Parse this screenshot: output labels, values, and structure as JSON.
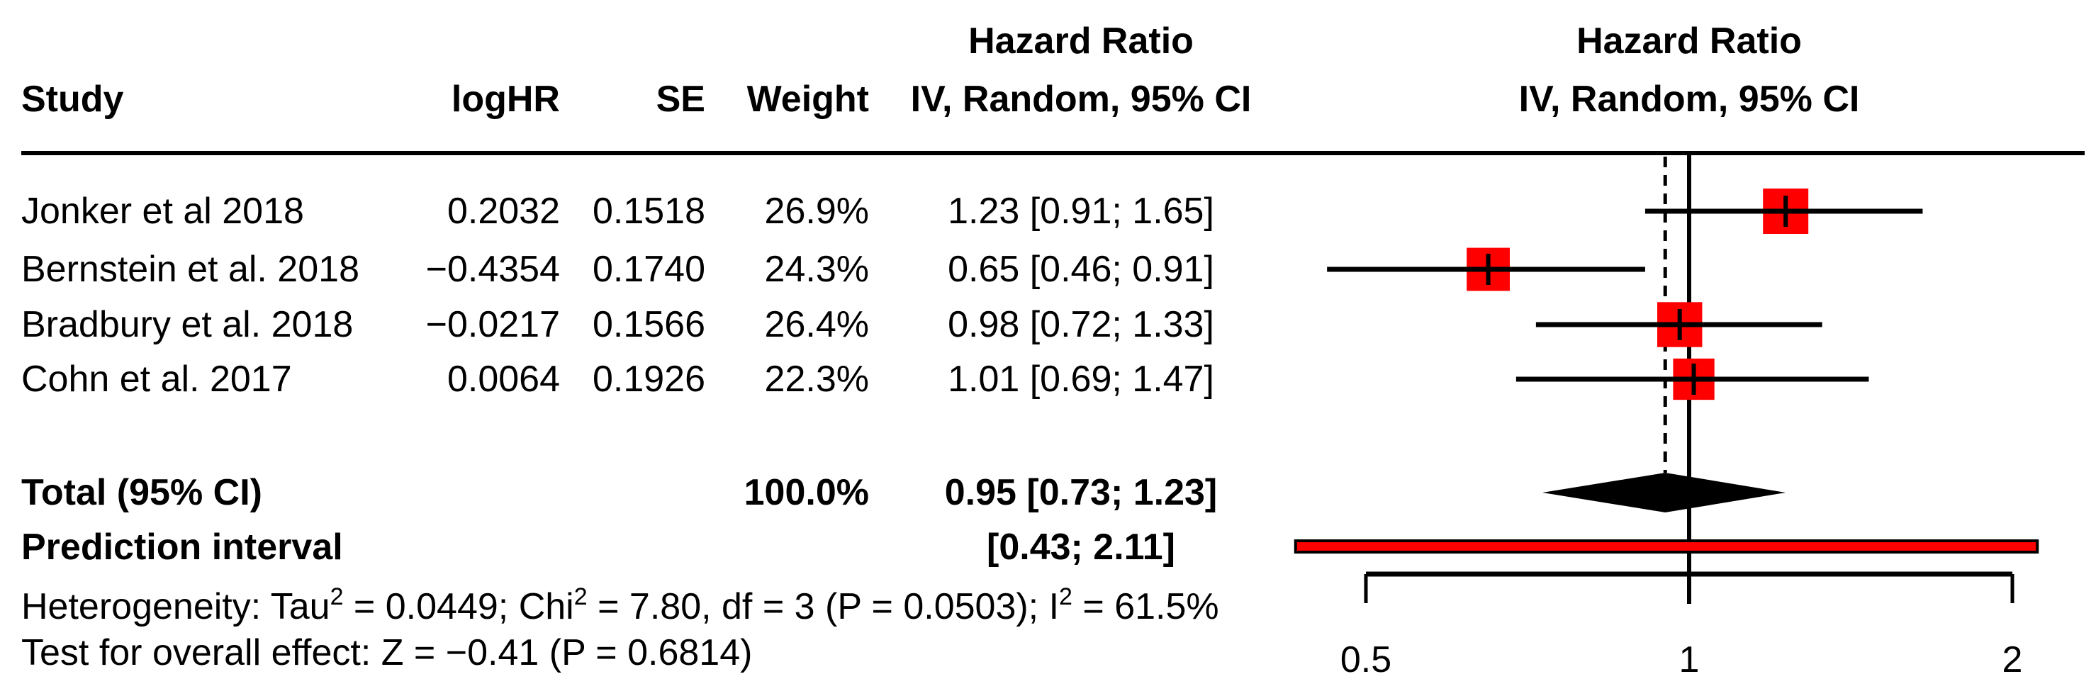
{
  "table": {
    "headers": {
      "hazard_ratio_left": "Hazard Ratio",
      "hazard_ratio_right": "Hazard Ratio",
      "study": "Study",
      "loghr": "logHR",
      "se": "SE",
      "weight": "Weight",
      "iv_random_left": "IV, Random, 95% CI",
      "iv_random_right": "IV, Random, 95% CI"
    },
    "rows": [
      {
        "study": "Jonker et al 2018",
        "loghr": "0.2032",
        "se": "0.1518",
        "weight": "26.9%",
        "ci": "1.23 [0.91; 1.65]"
      },
      {
        "study": "Bernstein et al. 2018",
        "loghr": "−0.4354",
        "se": "0.1740",
        "weight": "24.3%",
        "ci": "0.65 [0.46; 0.91]"
      },
      {
        "study": "Bradbury et al. 2018",
        "loghr": "−0.0217",
        "se": "0.1566",
        "weight": "26.4%",
        "ci": "0.98 [0.72; 1.33]"
      },
      {
        "study": "Cohn et al. 2017",
        "loghr": "0.0064",
        "se": "0.1926",
        "weight": "22.3%",
        "ci": "1.01 [0.69; 1.47]"
      }
    ],
    "total_row": {
      "label": "Total (95% CI)",
      "weight": "100.0%",
      "ci": "0.95 [0.73; 1.23]"
    },
    "prediction_row": {
      "label": "Prediction interval",
      "ci": "[0.43; 2.11]"
    }
  },
  "footnotes": {
    "heterogeneity": {
      "p1": "Heterogeneity: Tau",
      "s1": "2",
      "p2": " = 0.0449; Chi",
      "s2": "2",
      "p3": " = 7.80, df = 3 (P = 0.0503); I",
      "s3": "2",
      "p4": " = 61.5%"
    },
    "overall_effect": "Test for overall effect: Z = −0.41 (P = 0.6814)"
  },
  "chart_data": {
    "type": "forest",
    "x_scale": "log",
    "x_ticks": [
      0.5,
      1,
      2
    ],
    "x_tick_labels": [
      "0.5",
      "1",
      "2"
    ],
    "axis_range": [
      0.5,
      2
    ],
    "reference_line": 1,
    "studies": [
      {
        "name": "Jonker et al 2018",
        "hr": 1.23,
        "ci_low": 0.91,
        "ci_high": 1.65,
        "weight_pct": 26.9
      },
      {
        "name": "Bernstein et al. 2018",
        "hr": 0.65,
        "ci_low": 0.46,
        "ci_high": 0.91,
        "weight_pct": 24.3
      },
      {
        "name": "Bradbury et al. 2018",
        "hr": 0.98,
        "ci_low": 0.72,
        "ci_high": 1.33,
        "weight_pct": 26.4
      },
      {
        "name": "Cohn et al. 2017",
        "hr": 1.01,
        "ci_low": 0.69,
        "ci_high": 1.47,
        "weight_pct": 22.3
      }
    ],
    "total": {
      "hr": 0.95,
      "ci_low": 0.73,
      "ci_high": 1.23,
      "weight_pct": 100.0
    },
    "prediction_interval": {
      "low": 0.43,
      "high": 2.11
    },
    "heterogeneity": {
      "tau2": 0.0449,
      "chi2": 7.8,
      "df": 3,
      "p": 0.0503,
      "i2_pct": 61.5
    },
    "overall_effect_test": {
      "z": -0.41,
      "p": 0.6814
    },
    "colors": {
      "square": "#FF0000",
      "diamond": "#000000",
      "prediction_fill": "#FF0000",
      "line": "#000000"
    },
    "grid": false,
    "legend_position": "none"
  }
}
